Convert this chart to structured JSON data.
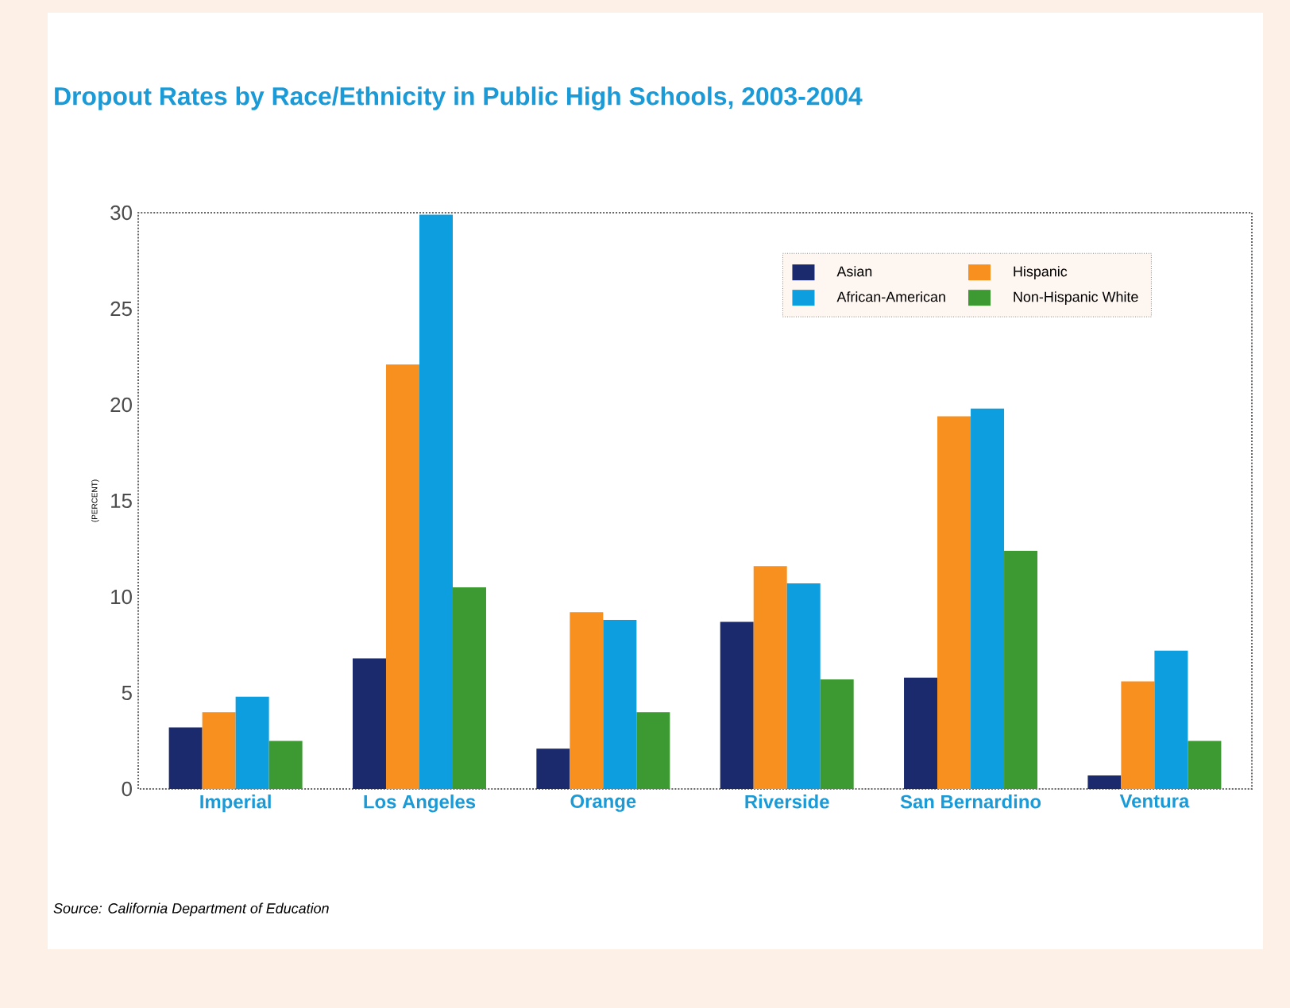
{
  "chart_data": {
    "type": "bar",
    "title": "Dropout Rates by Race/Ethnicity in Public High Schools, 2003-2004",
    "ylabel": "(PERCENT)",
    "categories": [
      "Imperial",
      "Los Angeles",
      "Orange",
      "Riverside",
      "San Bernardino",
      "Ventura"
    ],
    "series": [
      {
        "name": "Asian",
        "color": "#1a2a6c",
        "values": [
          3.2,
          6.8,
          2.1,
          8.7,
          5.8,
          0.7
        ]
      },
      {
        "name": "Hispanic",
        "color": "#f7901e",
        "values": [
          4.0,
          22.1,
          9.2,
          11.6,
          19.4,
          5.6
        ]
      },
      {
        "name": "African-American",
        "color": "#0d9ee0",
        "values": [
          4.8,
          29.9,
          8.8,
          10.7,
          19.8,
          7.2
        ]
      },
      {
        "name": "Non-Hispanic White",
        "color": "#3d9a32",
        "values": [
          2.5,
          10.5,
          4.0,
          5.7,
          12.4,
          2.5
        ]
      }
    ],
    "ylim": [
      0,
      30
    ],
    "yticks": [
      0,
      5,
      10,
      15,
      20,
      25,
      30
    ],
    "legend": "top right",
    "grid": false,
    "annotations": [
      "Source:  California Department of Education"
    ]
  }
}
